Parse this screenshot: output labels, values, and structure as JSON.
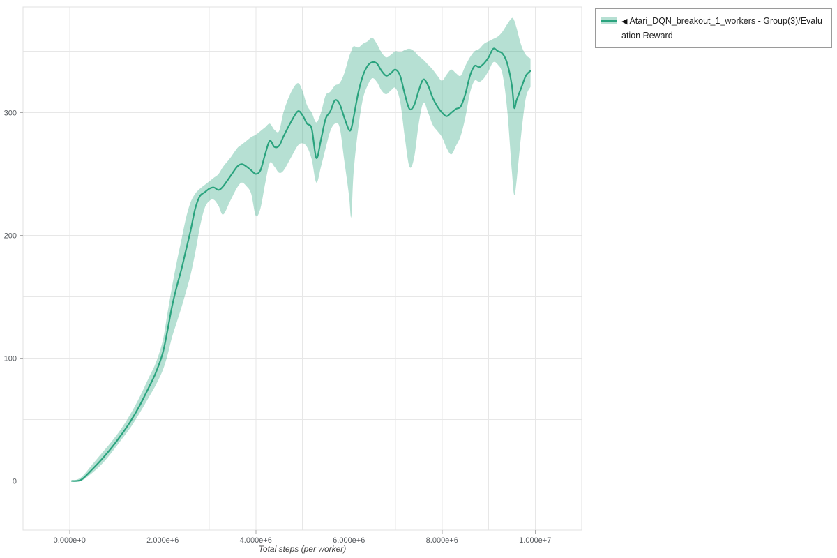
{
  "colors": {
    "background": "#ffffff",
    "grid": "#e7e7e7",
    "plot_border": "#e0e0e0",
    "tick": "#aaaaaa",
    "axis_text": "#55595e",
    "axis_title_text": "#3f3f3f",
    "legend_border": "#9a9a9a"
  },
  "legend": {
    "collapse_icon": "◀",
    "label": "Atari_DQN_breakout_1_workers - Group(3)/Evaluation Reward"
  },
  "chart_data": {
    "type": "line",
    "title": "",
    "xlabel": "Total steps (per worker)",
    "ylabel": "",
    "grid": true,
    "legend_position": "top-right-outside",
    "xlim": [
      -1000000,
      11000000
    ],
    "ylim": [
      -40,
      386
    ],
    "x_tick_values": [
      0,
      2000000,
      4000000,
      6000000,
      8000000,
      10000000
    ],
    "x_tick_labels": [
      "0.000e+0",
      "2.000e+6",
      "4.000e+6",
      "6.000e+6",
      "8.000e+6",
      "1.000e+7"
    ],
    "y_tick_values": [
      0,
      100,
      200,
      300
    ],
    "x_minor_grid_step": 1000000,
    "y_minor_grid_step": 50,
    "series": [
      {
        "name": "Atari_DQN_breakout_1_workers - Group(3)/Evaluation Reward",
        "color": "#2aa37e",
        "band_color": "rgba(42,163,126,0.34)",
        "x": [
          50000,
          250000,
          500000,
          700000,
          900000,
          1100000,
          1300000,
          1500000,
          1700000,
          1850000,
          2000000,
          2100000,
          2200000,
          2300000,
          2400000,
          2500000,
          2600000,
          2700000,
          2800000,
          2900000,
          3000000,
          3100000,
          3200000,
          3300000,
          3450000,
          3600000,
          3700000,
          3800000,
          3900000,
          4000000,
          4100000,
          4200000,
          4300000,
          4400000,
          4500000,
          4600000,
          4750000,
          4900000,
          5000000,
          5100000,
          5200000,
          5300000,
          5400000,
          5500000,
          5600000,
          5700000,
          5800000,
          5900000,
          6000000,
          6050000,
          6100000,
          6200000,
          6300000,
          6400000,
          6500000,
          6600000,
          6700000,
          6800000,
          6900000,
          7000000,
          7100000,
          7200000,
          7300000,
          7400000,
          7500000,
          7600000,
          7700000,
          7800000,
          7900000,
          8000000,
          8100000,
          8200000,
          8300000,
          8400000,
          8500000,
          8600000,
          8700000,
          8800000,
          8900000,
          9000000,
          9100000,
          9200000,
          9300000,
          9400000,
          9500000,
          9550000,
          9600000,
          9700000,
          9800000,
          9900000
        ],
        "mean": [
          0,
          1,
          10,
          18,
          27,
          37,
          48,
          61,
          76,
          88,
          104,
          122,
          142,
          158,
          172,
          188,
          204,
          222,
          232,
          235,
          238,
          239,
          237,
          240,
          248,
          256,
          258,
          256,
          253,
          250,
          253,
          266,
          277,
          272,
          273,
          281,
          292,
          301,
          298,
          291,
          287,
          263,
          278,
          295,
          301,
          310,
          307,
          296,
          286,
          287,
          296,
          316,
          330,
          338,
          341,
          340,
          334,
          330,
          332,
          335,
          330,
          315,
          303,
          306,
          318,
          327,
          322,
          312,
          305,
          300,
          297,
          300,
          303,
          305,
          315,
          330,
          338,
          337,
          340,
          345,
          352,
          350,
          348,
          340,
          322,
          304,
          310,
          320,
          330,
          334
        ],
        "lower": [
          0,
          0,
          7,
          14,
          23,
          33,
          43,
          55,
          68,
          78,
          90,
          102,
          117,
          129,
          141,
          154,
          168,
          186,
          207,
          222,
          228,
          229,
          224,
          217,
          228,
          239,
          243,
          240,
          234,
          216,
          222,
          242,
          259,
          256,
          251,
          253,
          263,
          273,
          275,
          272,
          262,
          243,
          256,
          271,
          285,
          291,
          288,
          261,
          233,
          215,
          251,
          287,
          311,
          322,
          328,
          325,
          318,
          315,
          318,
          320,
          309,
          280,
          256,
          263,
          291,
          308,
          300,
          290,
          285,
          280,
          271,
          266,
          273,
          281,
          296,
          316,
          326,
          325,
          328,
          334,
          341,
          339,
          331,
          302,
          252,
          233,
          244,
          282,
          312,
          321
        ],
        "upper": [
          0,
          3,
          14,
          23,
          32,
          42,
          54,
          68,
          84,
          96,
          114,
          136,
          158,
          178,
          196,
          214,
          227,
          234,
          238,
          241,
          244,
          247,
          250,
          256,
          263,
          271,
          274,
          277,
          280,
          282,
          285,
          288,
          291,
          286,
          285,
          301,
          316,
          324,
          318,
          306,
          300,
          292,
          300,
          314,
          317,
          322,
          324,
          332,
          345,
          350,
          354,
          353,
          356,
          358,
          361,
          356,
          349,
          345,
          347,
          350,
          349,
          351,
          352,
          350,
          346,
          343,
          339,
          335,
          330,
          326,
          331,
          335,
          332,
          330,
          338,
          345,
          350,
          352,
          356,
          358,
          360,
          362,
          366,
          372,
          377,
          375,
          369,
          355,
          347,
          344
        ]
      }
    ]
  }
}
